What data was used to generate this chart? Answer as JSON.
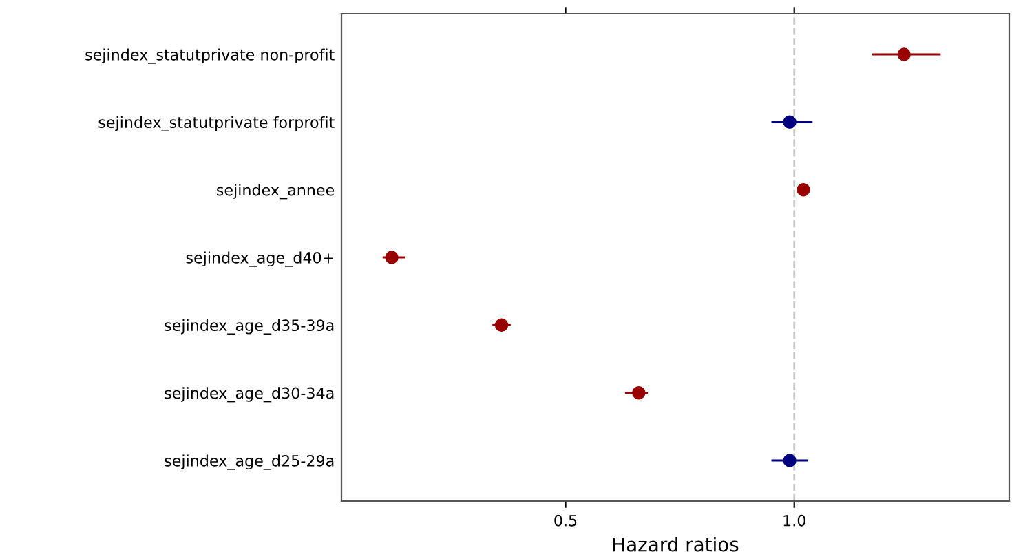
{
  "chart_data": {
    "type": "scatter",
    "orientation": "horizontal",
    "xlabel": "Hazard ratios",
    "categories": [
      "sejindex_statutprivate non-profit",
      "sejindex_statutprivate forprofit",
      "sejindex_annee",
      "sejindex_age_d40+",
      "sejindex_age_d35-39a",
      "sejindex_age_d30-34a",
      "sejindex_age_d25-29a"
    ],
    "values": [
      1.24,
      0.99,
      1.02,
      0.12,
      0.36,
      0.66,
      0.99
    ],
    "errors": [
      [
        1.17,
        1.32
      ],
      [
        0.95,
        1.04
      ],
      null,
      [
        0.1,
        0.15
      ],
      [
        0.34,
        0.38
      ],
      [
        0.63,
        0.68
      ],
      [
        0.95,
        1.03
      ]
    ],
    "colors": [
      "#990000",
      "#000080",
      "#990000",
      "#990000",
      "#990000",
      "#990000",
      "#000080"
    ],
    "xlim": [
      0.01,
      1.47
    ],
    "xticks": [
      0.5,
      {
        "value": 1.0,
        "label": "1.0"
      }
    ],
    "ref_lines": [
      {
        "axis": "x",
        "value": 1.0,
        "color": "#c8c8c8",
        "line_style": "dashed"
      }
    ],
    "grid": false,
    "marker": "circle"
  }
}
